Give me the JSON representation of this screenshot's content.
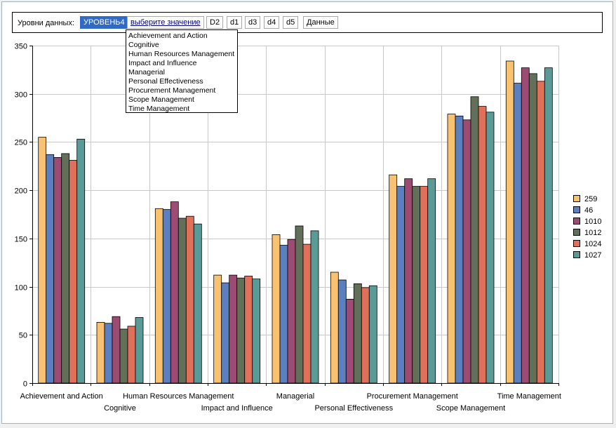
{
  "toolbar": {
    "label": "Уровни данных:",
    "level_chip": "УРОВЕНЬ4",
    "select_chip": "выберите значение",
    "chips": [
      "D2",
      "d1",
      "d3",
      "d4",
      "d5",
      "Данные"
    ]
  },
  "dropdown": {
    "options": [
      "Achievement and Action",
      "Cognitive",
      "Human Resources Management",
      "Impact and Influence",
      "Managerial",
      "Personal Effectiveness",
      "Procurement Management",
      "Scope Management",
      "Time Management"
    ]
  },
  "colors": {
    "series": [
      "#f9c271",
      "#5b7fbf",
      "#9c4b72",
      "#637059",
      "#e0705a",
      "#5a9b98"
    ],
    "grid": "#c8c8c8"
  },
  "chart_data": {
    "type": "bar",
    "categories": [
      "Achievement and Action",
      "Cognitive",
      "Human Resources Management",
      "Impact and Influence",
      "Managerial",
      "Personal Effectiveness",
      "Procurement Management",
      "Scope Management",
      "Time Management"
    ],
    "series": [
      {
        "name": "259",
        "values": [
          255,
          63,
          181,
          112,
          154,
          115,
          216,
          279,
          334
        ]
      },
      {
        "name": "46",
        "values": [
          237,
          62,
          180,
          104,
          143,
          107,
          204,
          277,
          311
        ]
      },
      {
        "name": "1010",
        "values": [
          234,
          69,
          188,
          112,
          149,
          87,
          212,
          273,
          327
        ]
      },
      {
        "name": "1012",
        "values": [
          238,
          56,
          171,
          109,
          163,
          103,
          204,
          297,
          321
        ]
      },
      {
        "name": "1024",
        "values": [
          231,
          59,
          173,
          111,
          144,
          99,
          204,
          287,
          313
        ]
      },
      {
        "name": "1027",
        "values": [
          253,
          68,
          165,
          108,
          158,
          101,
          212,
          281,
          327
        ]
      }
    ],
    "yticks": [
      0,
      50,
      100,
      150,
      200,
      250,
      300,
      350
    ],
    "ylim": [
      0,
      350
    ],
    "grid": true,
    "legend_position": "right"
  }
}
